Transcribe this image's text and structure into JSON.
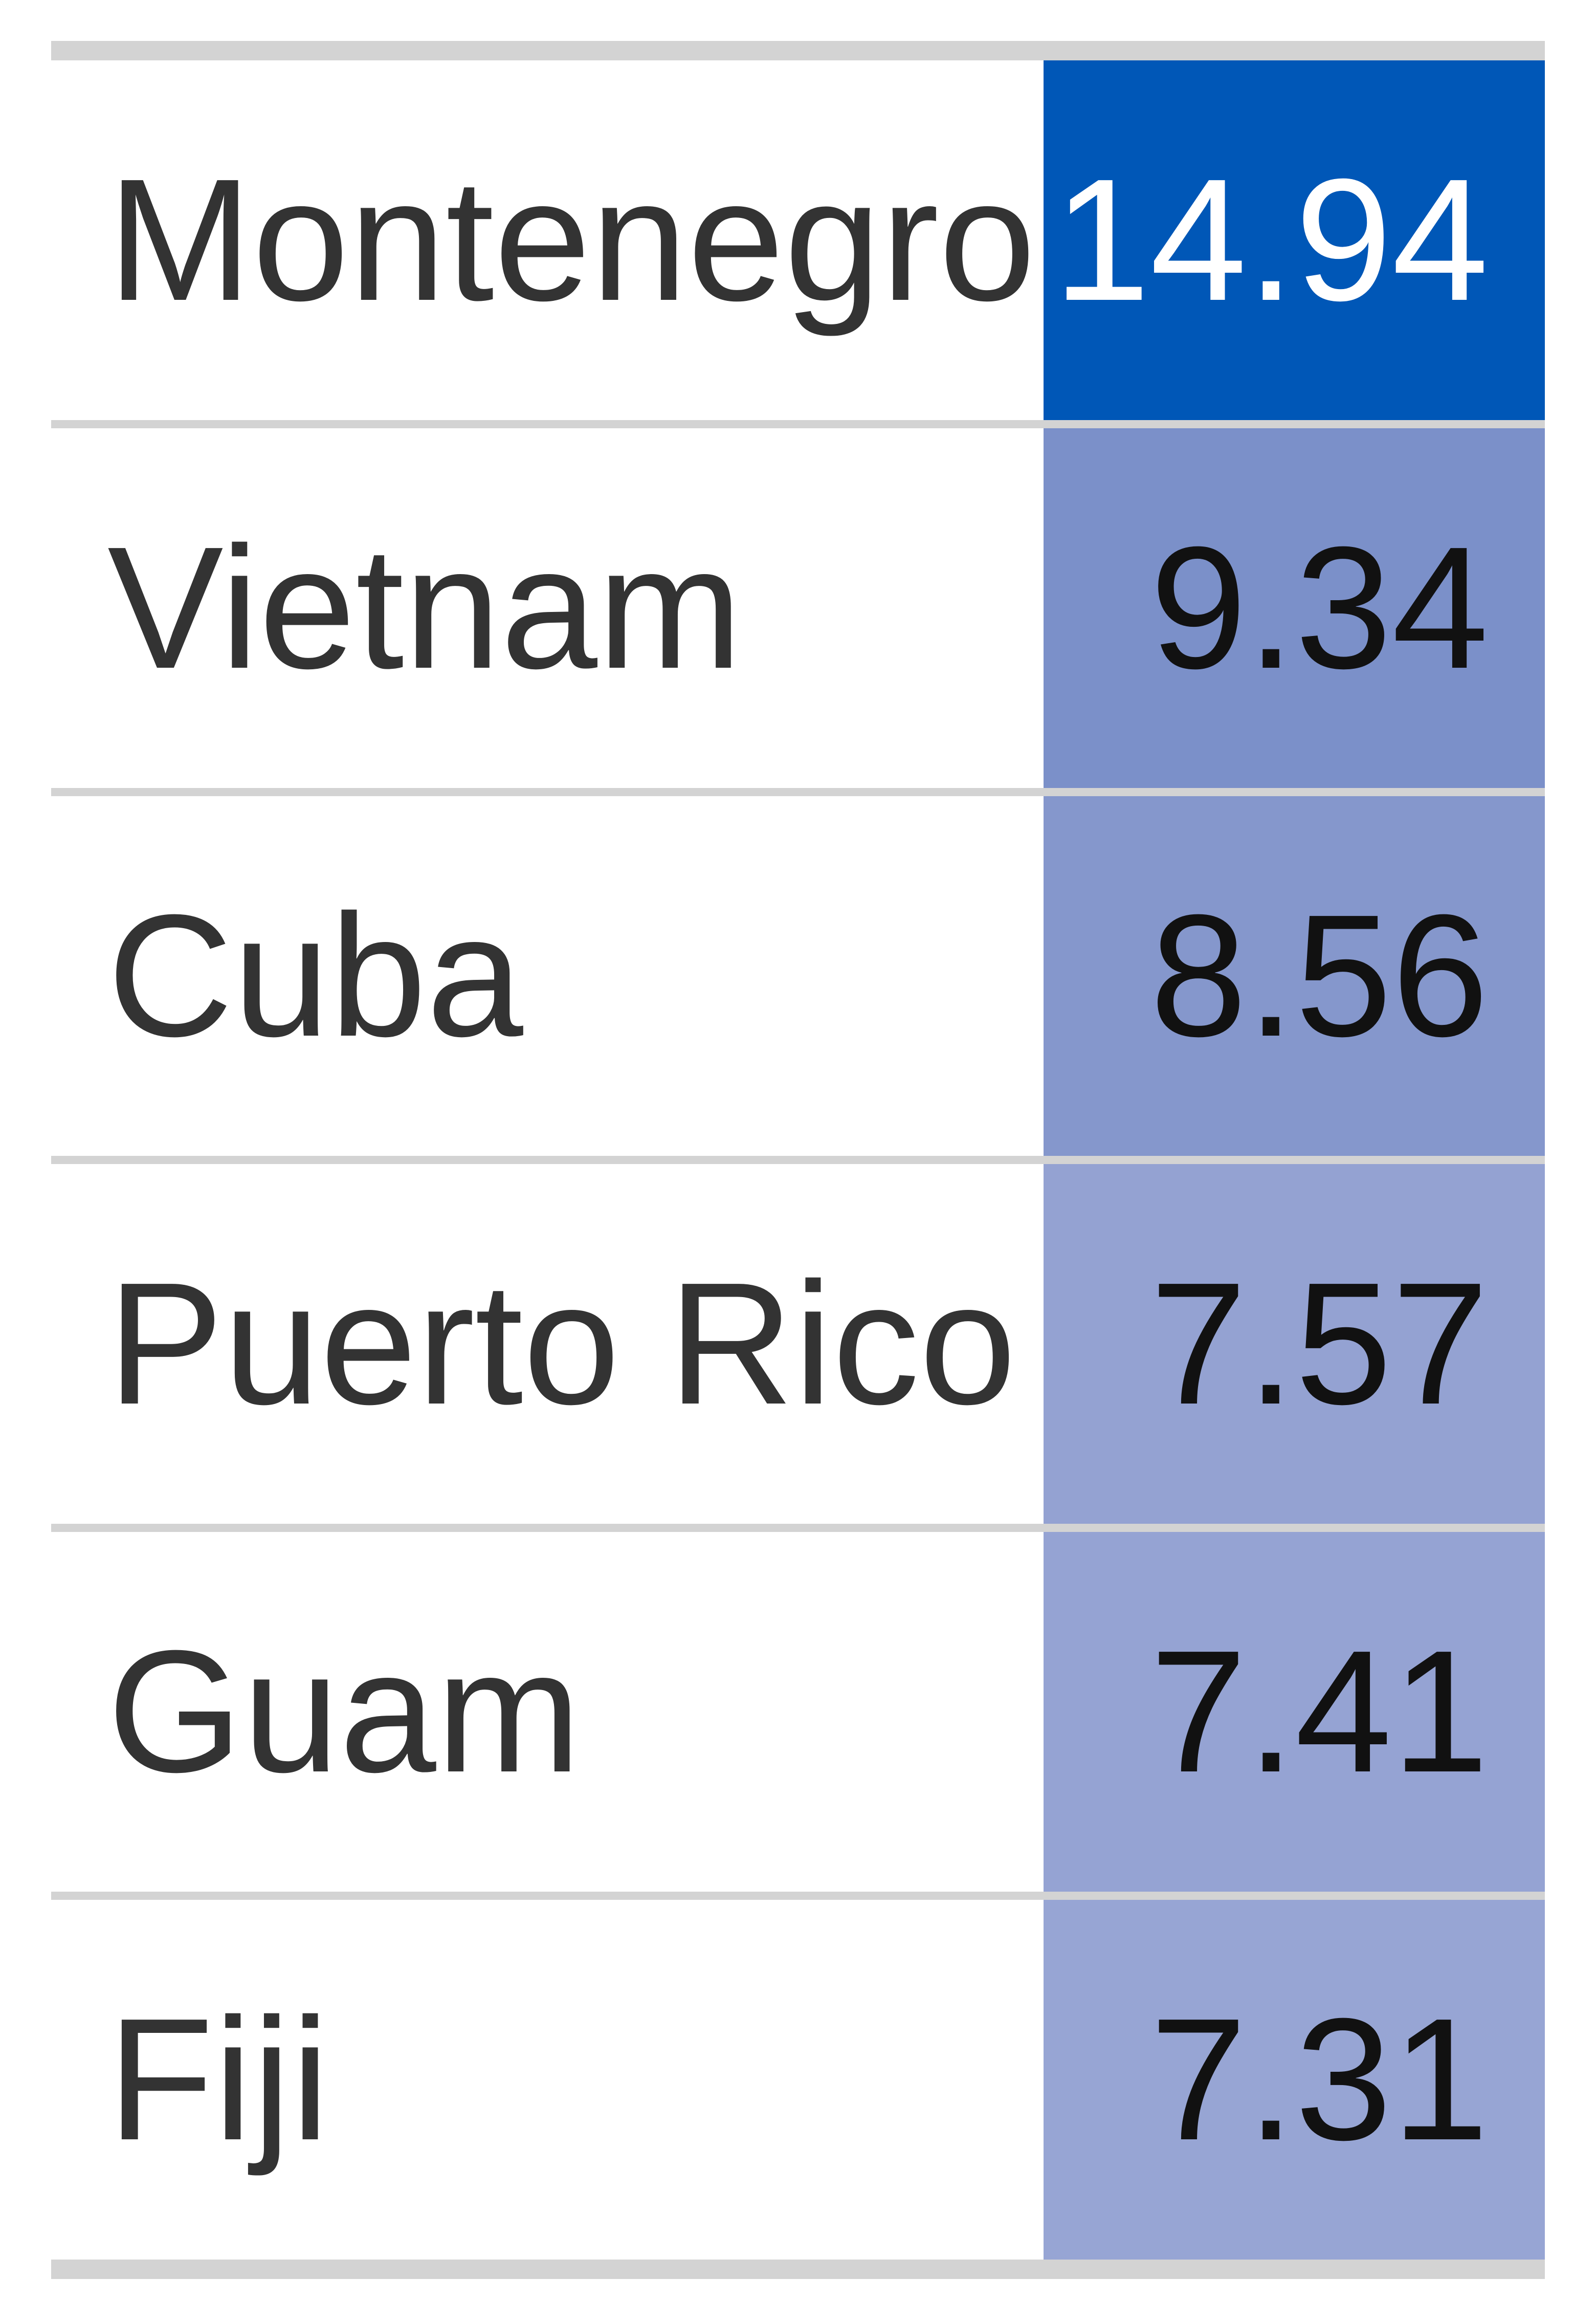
{
  "chart_data": {
    "type": "table",
    "columns": [
      "",
      ""
    ],
    "rows": [
      {
        "country": "Montenegro",
        "value": "14.94",
        "cell_color": "#0057b7",
        "text_color": "#ffffff"
      },
      {
        "country": "Vietnam",
        "value": "9.34",
        "cell_color": "#7b90c9",
        "text_color": "#111111"
      },
      {
        "country": "Cuba",
        "value": "8.56",
        "cell_color": "#8597cc",
        "text_color": "#111111"
      },
      {
        "country": "Puerto Rico",
        "value": "7.57",
        "cell_color": "#94a2d2",
        "text_color": "#111111"
      },
      {
        "country": "Guam",
        "value": "7.41",
        "cell_color": "#95a3d3",
        "text_color": "#111111"
      },
      {
        "country": "Fiji",
        "value": "7.31",
        "cell_color": "#97a5d4",
        "text_color": "#111111"
      }
    ],
    "rule_color": "#d3d3d3"
  }
}
